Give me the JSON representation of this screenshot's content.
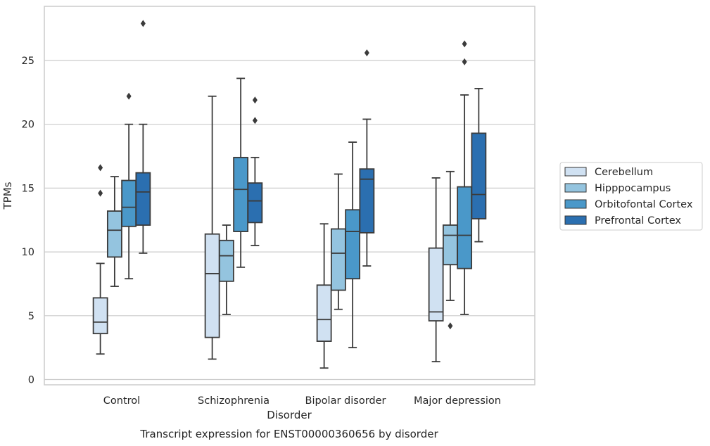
{
  "chart_data": {
    "type": "box",
    "title": "Transcript expression for ENST00000360656 by disorder",
    "xlabel": "Disorder",
    "ylabel": "TPMs",
    "ylim": [
      -0.4,
      29.3
    ],
    "yticks": [
      0,
      5,
      10,
      15,
      20,
      25
    ],
    "grid": "horizontal",
    "legend_position": "right",
    "categories": [
      "Control",
      "Schizophrenia",
      "Bipolar disorder",
      "Major depression"
    ],
    "series": [
      {
        "name": "Cerebellum",
        "color": "#d0e1f2",
        "boxes": [
          {
            "whisker_low": 2.0,
            "q1": 3.6,
            "median": 4.5,
            "q3": 6.4,
            "whisker_high": 9.1,
            "outliers": [
              16.6,
              14.6
            ]
          },
          {
            "whisker_low": 1.6,
            "q1": 3.3,
            "median": 8.3,
            "q3": 11.4,
            "whisker_high": 22.2,
            "outliers": []
          },
          {
            "whisker_low": 0.9,
            "q1": 3.0,
            "median": 4.7,
            "q3": 7.4,
            "whisker_high": 12.2,
            "outliers": []
          },
          {
            "whisker_low": 1.4,
            "q1": 4.6,
            "median": 5.3,
            "q3": 10.3,
            "whisker_high": 15.8,
            "outliers": []
          }
        ]
      },
      {
        "name": "Hipppocampus",
        "color": "#94c4df",
        "boxes": [
          {
            "whisker_low": 7.3,
            "q1": 9.6,
            "median": 11.7,
            "q3": 13.2,
            "whisker_high": 15.9,
            "outliers": []
          },
          {
            "whisker_low": 5.1,
            "q1": 7.7,
            "median": 9.7,
            "q3": 10.9,
            "whisker_high": 12.1,
            "outliers": []
          },
          {
            "whisker_low": 5.5,
            "q1": 7.0,
            "median": 9.9,
            "q3": 11.8,
            "whisker_high": 16.1,
            "outliers": []
          },
          {
            "whisker_low": 6.2,
            "q1": 9.0,
            "median": 11.3,
            "q3": 12.1,
            "whisker_high": 16.3,
            "outliers": [
              4.2
            ]
          }
        ]
      },
      {
        "name": "Orbitofontal Cortex",
        "color": "#4a98c9",
        "boxes": [
          {
            "whisker_low": 7.9,
            "q1": 12.0,
            "median": 13.5,
            "q3": 15.6,
            "whisker_high": 20.0,
            "outliers": [
              22.2
            ]
          },
          {
            "whisker_low": 8.8,
            "q1": 11.6,
            "median": 14.9,
            "q3": 17.4,
            "whisker_high": 23.6,
            "outliers": []
          },
          {
            "whisker_low": 2.5,
            "q1": 7.9,
            "median": 11.6,
            "q3": 13.3,
            "whisker_high": 18.6,
            "outliers": []
          },
          {
            "whisker_low": 5.1,
            "q1": 8.7,
            "median": 11.3,
            "q3": 15.1,
            "whisker_high": 22.3,
            "outliers": [
              24.9,
              26.3
            ]
          }
        ]
      },
      {
        "name": "Prefrontal Cortex",
        "color": "#2b6fb0",
        "boxes": [
          {
            "whisker_low": 9.9,
            "q1": 12.1,
            "median": 14.7,
            "q3": 16.2,
            "whisker_high": 20.0,
            "outliers": [
              27.9
            ]
          },
          {
            "whisker_low": 10.5,
            "q1": 12.3,
            "median": 14.0,
            "q3": 15.4,
            "whisker_high": 17.4,
            "outliers": [
              20.3,
              21.9
            ]
          },
          {
            "whisker_low": 8.9,
            "q1": 11.5,
            "median": 15.7,
            "q3": 16.5,
            "whisker_high": 20.4,
            "outliers": [
              25.6
            ]
          },
          {
            "whisker_low": 10.8,
            "q1": 12.6,
            "median": 14.5,
            "q3": 19.3,
            "whisker_high": 22.8,
            "outliers": []
          }
        ]
      }
    ]
  }
}
